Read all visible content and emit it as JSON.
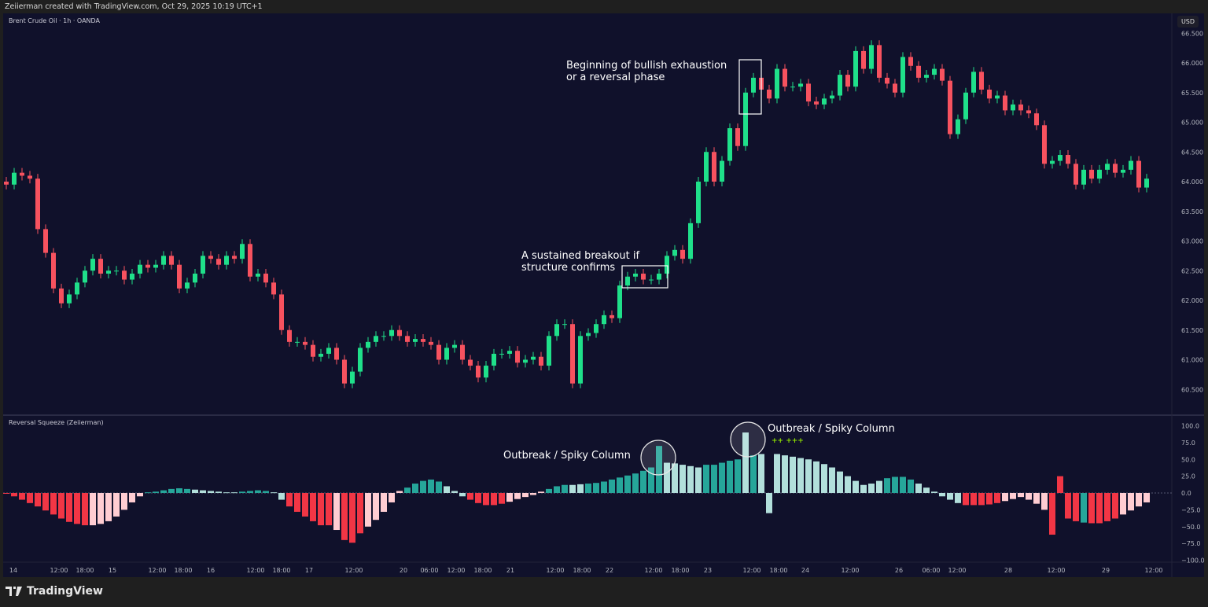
{
  "header": {
    "caption": "Zeiierman created with TradingView.com, Oct 29, 2025 10:19 UTC+1"
  },
  "main_pane": {
    "symbol": "Brent Crude Oil · 1h · OANDA",
    "currency": "USD"
  },
  "indicator_pane": {
    "title": "Reversal Squeeze (Zeiierman)"
  },
  "annotations": {
    "exhaustion": [
      "Beginning of bullish exhaustion",
      "or a reversal phase"
    ],
    "breakout": [
      "A sustained breakout if",
      "structure confirms"
    ],
    "spike_left": "Outbreak / Spiky Column",
    "spike_right": "Outbreak / Spiky Column",
    "markers": "++  +++"
  },
  "footer": {
    "brand": "TradingView"
  },
  "colors": {
    "up": "#1fe08a",
    "down": "#f7525f",
    "osc_red": "#f23645",
    "osc_pink": "#ffcdd2",
    "osc_teal": "#26a69a",
    "osc_light": "#b2dfdb",
    "background": "#10112b"
  },
  "chart_data": [
    {
      "type": "candlestick",
      "title": "Brent Crude Oil · 1h · OANDA",
      "ylim": [
        60.3,
        66.6
      ],
      "y_ticks": [
        "66.500",
        "66.000",
        "65.500",
        "65.000",
        "64.500",
        "64.000",
        "63.500",
        "63.000",
        "62.500",
        "62.000",
        "61.500",
        "61.000",
        "60.500"
      ],
      "x_ticks": [
        "14",
        "12:00",
        "18:00",
        "15",
        "12:00",
        "18:00",
        "16",
        "12:00",
        "18:00",
        "17",
        "12:00",
        "20",
        "06:00",
        "12:00",
        "18:00",
        "21",
        "12:00",
        "18:00",
        "22",
        "12:00",
        "18:00",
        "23",
        "12:00",
        "18:00",
        "24",
        "12:00",
        "26",
        "06:00",
        "12:00",
        "28",
        "12:00",
        "29",
        "12:00"
      ],
      "closes": [
        63.95,
        64.15,
        64.1,
        64.05,
        63.2,
        62.8,
        62.2,
        61.95,
        62.1,
        62.3,
        62.5,
        62.7,
        62.45,
        62.5,
        62.5,
        62.35,
        62.45,
        62.6,
        62.55,
        62.6,
        62.75,
        62.6,
        62.2,
        62.3,
        62.45,
        62.75,
        62.7,
        62.6,
        62.75,
        62.7,
        62.95,
        62.4,
        62.45,
        62.3,
        62.1,
        61.5,
        61.3,
        61.3,
        61.25,
        61.05,
        61.1,
        61.2,
        61.0,
        60.6,
        60.8,
        61.2,
        61.3,
        61.4,
        61.4,
        61.5,
        61.4,
        61.3,
        61.35,
        61.3,
        61.25,
        61.0,
        61.2,
        61.25,
        61.0,
        60.9,
        60.7,
        60.9,
        61.1,
        61.1,
        61.15,
        60.95,
        61.0,
        61.05,
        60.9,
        61.4,
        61.6,
        61.6,
        60.6,
        61.4,
        61.45,
        61.6,
        61.75,
        61.7,
        62.25,
        62.4,
        62.45,
        62.35,
        62.35,
        62.45,
        62.75,
        62.85,
        62.7,
        63.3,
        64.0,
        64.5,
        64.0,
        64.35,
        64.9,
        64.6,
        65.5,
        65.75,
        65.55,
        65.4,
        65.9,
        65.6,
        65.6,
        65.65,
        65.35,
        65.3,
        65.4,
        65.45,
        65.8,
        65.6,
        66.2,
        65.9,
        66.3,
        65.75,
        65.65,
        65.5,
        66.1,
        65.95,
        65.75,
        65.8,
        65.9,
        65.7,
        64.8,
        65.05,
        65.5,
        65.85,
        65.55,
        65.4,
        65.45,
        65.2,
        65.3,
        65.2,
        65.15,
        64.95,
        64.3,
        64.35,
        64.45,
        64.3,
        63.95,
        64.2,
        64.05,
        64.2,
        64.3,
        64.15,
        64.2,
        64.35,
        63.9,
        64.05
      ]
    },
    {
      "type": "bar",
      "title": "Reversal Squeeze (Zeiierman)",
      "ylim": [
        -100,
        100
      ],
      "y_ticks": [
        "100.0",
        "75.0",
        "50.0",
        "25.0",
        "0.0",
        "−25.0",
        "−50.0",
        "−75.0",
        "−100.0"
      ],
      "values": [
        0,
        -5,
        -10,
        -15,
        -20,
        -26,
        -32,
        -38,
        -43,
        -46,
        -48,
        -48,
        -46,
        -42,
        -35,
        -25,
        -14,
        -5,
        1,
        2,
        4,
        6,
        7,
        6,
        5,
        4,
        3,
        2,
        1,
        1,
        2,
        3,
        4,
        3,
        1,
        -10,
        -20,
        -28,
        -35,
        -42,
        -48,
        -48,
        -55,
        -70,
        -74,
        -60,
        -50,
        -40,
        -28,
        -14,
        3,
        8,
        14,
        18,
        20,
        17,
        10,
        3,
        -5,
        -10,
        -15,
        -18,
        -18,
        -16,
        -13,
        -9,
        -6,
        -3,
        2,
        6,
        10,
        12,
        12,
        13,
        14,
        15,
        17,
        20,
        23,
        26,
        29,
        33,
        38,
        70,
        45,
        44,
        42,
        40,
        38,
        42,
        42,
        45,
        48,
        50,
        90,
        56,
        58,
        -30,
        58,
        56,
        54,
        52,
        50,
        47,
        43,
        38,
        32,
        25,
        18,
        12,
        14,
        18,
        22,
        24,
        24,
        20,
        14,
        8,
        2,
        -5,
        -10,
        -15,
        -18,
        -18,
        -18,
        -17,
        -15,
        -12,
        -9,
        -6,
        -10,
        -16,
        -25,
        -62,
        25,
        -38,
        -42,
        -44,
        -45,
        -45,
        -42,
        -38,
        -32,
        -26,
        -20,
        -14
      ],
      "states": "rrrrrrrrrrrpppppppggggggllllllggggllrrrrrrprrrpppppggggglllrrrrrpppppgggllgggggggggglllllggggglgllllllllllllllllggggllllllrrrrrpppppprrrrgrrrrpppppppp"
    }
  ]
}
